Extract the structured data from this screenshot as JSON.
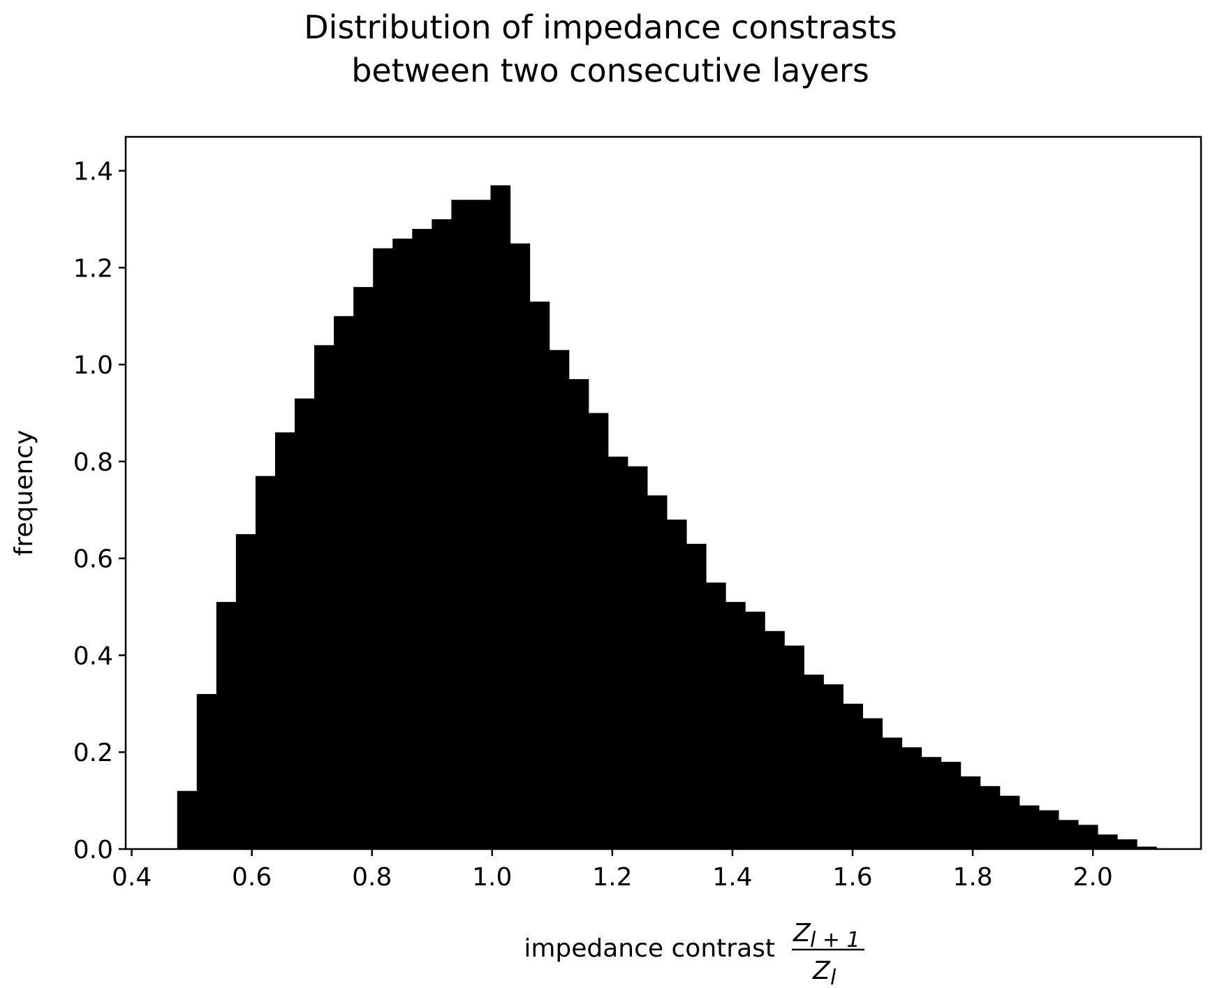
{
  "chart_data": {
    "type": "bar",
    "title_line1": "Distribution of impedance constrasts",
    "title_line2": "between two consecutive layers",
    "xlabel": "impedance contrast",
    "xlabel_math": {
      "numerator": "Z",
      "numerator_sub": "l + 1",
      "denominator": "Z",
      "denominator_sub": "l"
    },
    "ylabel": "frequency",
    "xlim": [
      0.39,
      2.18
    ],
    "ylim": [
      0.0,
      1.47
    ],
    "xticks": [
      "0.4",
      "0.6",
      "0.8",
      "1.0",
      "1.2",
      "1.4",
      "1.6",
      "1.8",
      "2.0"
    ],
    "xtick_values": [
      0.4,
      0.6,
      0.8,
      1.0,
      1.2,
      1.4,
      1.6,
      1.8,
      2.0
    ],
    "yticks": [
      "0.0",
      "0.2",
      "0.4",
      "0.6",
      "0.8",
      "1.0",
      "1.2",
      "1.4"
    ],
    "ytick_values": [
      0.0,
      0.2,
      0.4,
      0.6,
      0.8,
      1.0,
      1.2,
      1.4
    ],
    "grid": false,
    "bar_color": "#000000",
    "bin_start": 0.4757,
    "bin_width": 0.0326,
    "values": [
      0.12,
      0.32,
      0.51,
      0.65,
      0.77,
      0.86,
      0.93,
      1.04,
      1.1,
      1.16,
      1.24,
      1.26,
      1.28,
      1.3,
      1.34,
      1.34,
      1.37,
      1.25,
      1.13,
      1.03,
      0.97,
      0.9,
      0.81,
      0.79,
      0.73,
      0.68,
      0.63,
      0.55,
      0.51,
      0.49,
      0.45,
      0.42,
      0.36,
      0.34,
      0.3,
      0.27,
      0.23,
      0.21,
      0.19,
      0.18,
      0.15,
      0.13,
      0.11,
      0.09,
      0.08,
      0.06,
      0.05,
      0.03,
      0.02,
      0.005
    ]
  }
}
